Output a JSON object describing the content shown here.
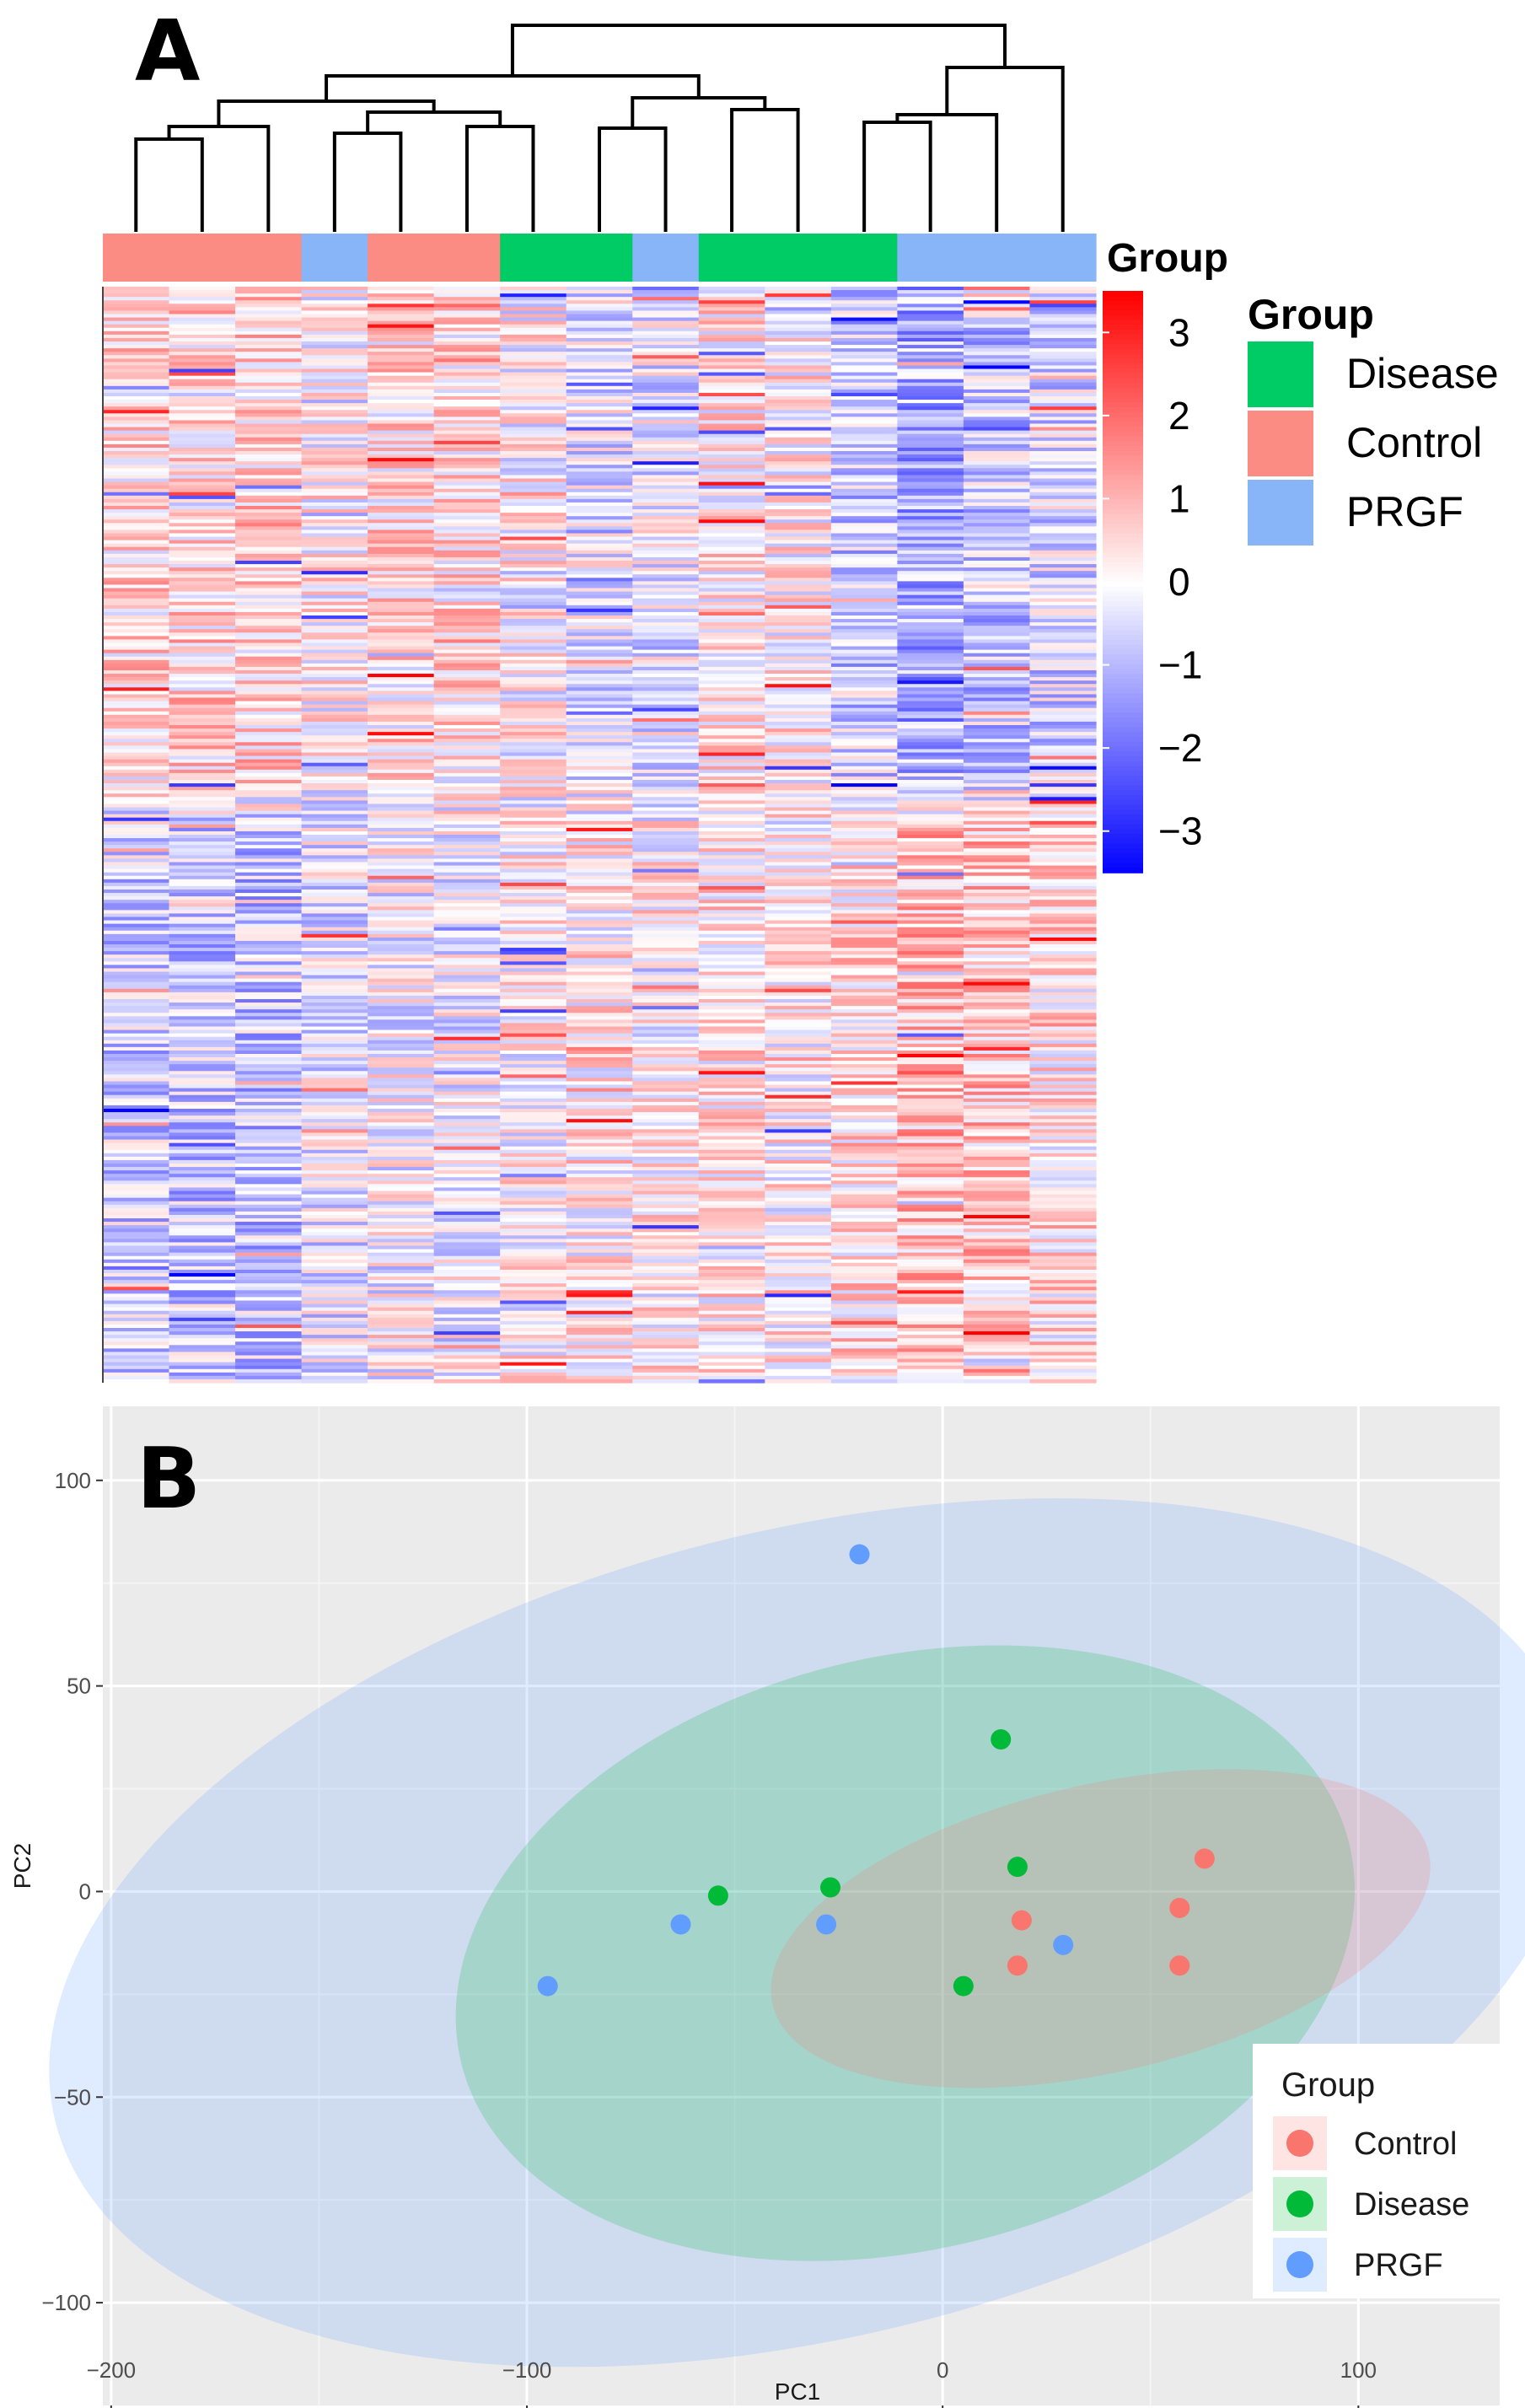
{
  "panels": {
    "a": {
      "letter": "A"
    },
    "b": {
      "letter": "B"
    }
  },
  "chart_data": [
    {
      "type": "heatmap",
      "panel": "A",
      "n_columns": 15,
      "column_groups": [
        "Control",
        "Control",
        "Control",
        "PRGF",
        "Control",
        "Control",
        "Disease",
        "Disease",
        "PRGF",
        "Disease",
        "Disease",
        "Disease",
        "PRGF",
        "PRGF",
        "PRGF"
      ],
      "column_profiles": [
        {
          "top": 0.9,
          "bottom": -1.1
        },
        {
          "top": 1.0,
          "bottom": -1.3
        },
        {
          "top": 1.1,
          "bottom": -1.4
        },
        {
          "top": 0.3,
          "bottom": -0.6
        },
        {
          "top": 0.8,
          "bottom": -0.2
        },
        {
          "top": 0.7,
          "bottom": -0.3
        },
        {
          "top": 0.2,
          "bottom": 0.2
        },
        {
          "top": -0.6,
          "bottom": 0.5
        },
        {
          "top": -0.5,
          "bottom": 0.3
        },
        {
          "top": 0.6,
          "bottom": 0.6
        },
        {
          "top": 0.4,
          "bottom": 0.3
        },
        {
          "top": -1.2,
          "bottom": 0.8
        },
        {
          "top": -2.0,
          "bottom": 1.6
        },
        {
          "top": -1.3,
          "bottom": 1.4
        },
        {
          "top": -0.9,
          "bottom": 0.7
        }
      ],
      "n_rows": 320,
      "color_scale": {
        "min": -3.5,
        "max": 3.5,
        "low_color": "#0000ff",
        "mid_color": "#ffffff",
        "high_color": "#ff0000",
        "ticks": [
          3,
          2,
          1,
          0,
          -1,
          -2,
          -3
        ],
        "tick_labels": [
          "3",
          "2",
          "1",
          "0",
          "−1",
          "−2",
          "−3"
        ]
      },
      "annotation_label": "Group",
      "legend": {
        "title": "Group",
        "entries": [
          {
            "label": "Disease",
            "color": "#00cc66"
          },
          {
            "label": "Control",
            "color": "#fa8c84"
          },
          {
            "label": "PRGF",
            "color": "#88b4f8"
          }
        ]
      }
    },
    {
      "type": "scatter",
      "panel": "B",
      "xlabel": "PC1",
      "ylabel": "PC2",
      "xlim": [
        -202,
        134
      ],
      "ylim": [
        -125,
        118
      ],
      "xticks": [
        -200,
        -100,
        0,
        100
      ],
      "xtick_labels": [
        "−200",
        "−100",
        "0",
        "100"
      ],
      "yticks": [
        -100,
        -50,
        0,
        50,
        100
      ],
      "ytick_labels": [
        "−100",
        "−50",
        "0",
        "50",
        "100"
      ],
      "grid": true,
      "legend_title": "Group",
      "legend_position": "bottom-right",
      "series": [
        {
          "name": "Control",
          "color": "#f8766d",
          "points": [
            [
              19,
              -7
            ],
            [
              57,
              -4
            ],
            [
              63,
              8
            ],
            [
              18,
              -18
            ],
            [
              57,
              -18
            ]
          ]
        },
        {
          "name": "Disease",
          "color": "#00ba38",
          "points": [
            [
              14,
              37
            ],
            [
              18,
              6
            ],
            [
              -27,
              1
            ],
            [
              -54,
              -1
            ],
            [
              5,
              -23
            ]
          ]
        },
        {
          "name": "PRGF",
          "color": "#619cff",
          "points": [
            [
              -20,
              82
            ],
            [
              -63,
              -8
            ],
            [
              -28,
              -8
            ],
            [
              -95,
              -23
            ],
            [
              29,
              -13
            ]
          ]
        }
      ],
      "ellipses": [
        {
          "group": "PRGF",
          "color": "#619cff",
          "cx": -31,
          "cy": -10,
          "rx": 188,
          "ry": 98,
          "angle": 14
        },
        {
          "group": "Disease",
          "color": "#00ba38",
          "cx": -9,
          "cy": -15,
          "rx": 110,
          "ry": 72,
          "angle": 14
        },
        {
          "group": "Control",
          "color": "#f8766d",
          "cx": 38,
          "cy": -9,
          "rx": 81,
          "ry": 35,
          "angle": 13
        }
      ]
    }
  ]
}
